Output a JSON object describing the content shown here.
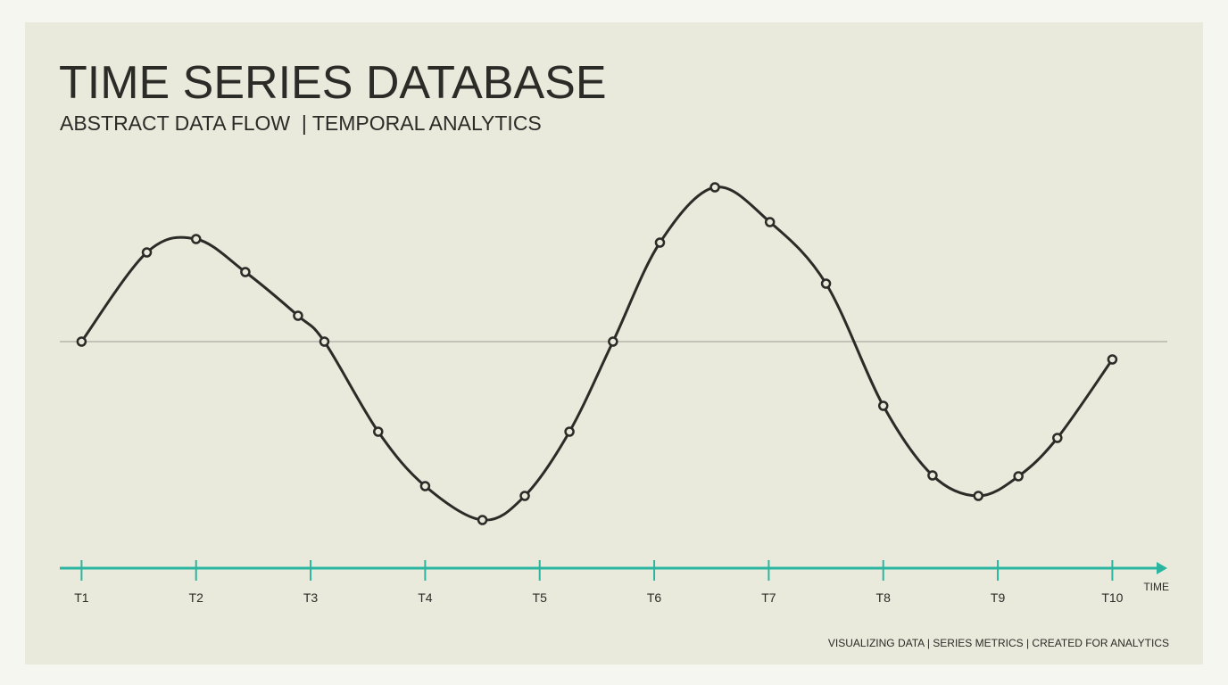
{
  "chart_data": {
    "type": "line",
    "title": "TIME SERIES DATABASE",
    "subtitle": "ABSTRACT DATA FLOW  | TEMPORAL ANALYTICS",
    "x_label": "TIME",
    "footer": "VISUALIZING DATA | SERIES METRICS | CREATED FOR ANALYTICS",
    "x": [
      1.0,
      1.57,
      2.0,
      2.43,
      2.89,
      3.12,
      3.59,
      4.0,
      4.5,
      4.87,
      5.26,
      5.64,
      6.05,
      6.53,
      7.01,
      7.5,
      8.0,
      8.43,
      8.83,
      9.18,
      9.52,
      10.0
    ],
    "series": [
      {
        "color": "#2b2b27",
        "values": [
          0,
          1.0,
          1.15,
          0.78,
          0.29,
          0,
          -1.01,
          -1.62,
          -2.0,
          -1.73,
          -1.01,
          0,
          1.11,
          1.73,
          1.34,
          0.65,
          -0.72,
          -1.5,
          -1.73,
          -1.51,
          -1.08,
          -0.2
        ]
      }
    ],
    "xlim": [
      0.81,
      10.48
    ],
    "ylim": [
      -2,
      2
    ],
    "xticks": [
      {
        "value": 1,
        "label": "T1"
      },
      {
        "value": 2,
        "label": "T2"
      },
      {
        "value": 3,
        "label": "T3"
      },
      {
        "value": 4,
        "label": "T4"
      },
      {
        "value": 5,
        "label": "T5"
      },
      {
        "value": 6,
        "label": "T6"
      },
      {
        "value": 7,
        "label": "T7"
      },
      {
        "value": 8,
        "label": "T8"
      },
      {
        "value": 9,
        "label": "T9"
      },
      {
        "value": 10,
        "label": "T10"
      }
    ],
    "hline": 0,
    "axis_color": "#2bb5a0"
  }
}
